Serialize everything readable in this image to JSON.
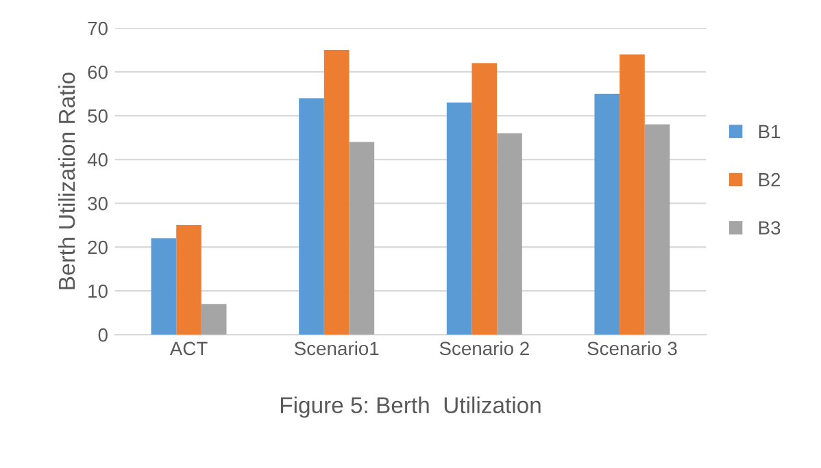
{
  "chart_data": {
    "type": "bar",
    "title": "Figure 5: Berth  Utilization",
    "ylabel": "Berth Utilization Ratio",
    "categories": [
      "ACT",
      "Scenario1",
      "Scenario 2",
      "Scenario 3"
    ],
    "series": [
      {
        "name": "B1",
        "color": "#5b9bd5",
        "values": [
          22,
          54,
          53,
          55
        ]
      },
      {
        "name": "B2",
        "color": "#ed7d31",
        "values": [
          25,
          65,
          62,
          64
        ]
      },
      {
        "name": "B3",
        "color": "#a5a5a5",
        "values": [
          7,
          44,
          46,
          48
        ]
      }
    ],
    "ylim": [
      0,
      70
    ],
    "yticks": [
      0,
      10,
      20,
      30,
      40,
      50,
      60,
      70
    ],
    "grid": "y",
    "legend": "right"
  }
}
